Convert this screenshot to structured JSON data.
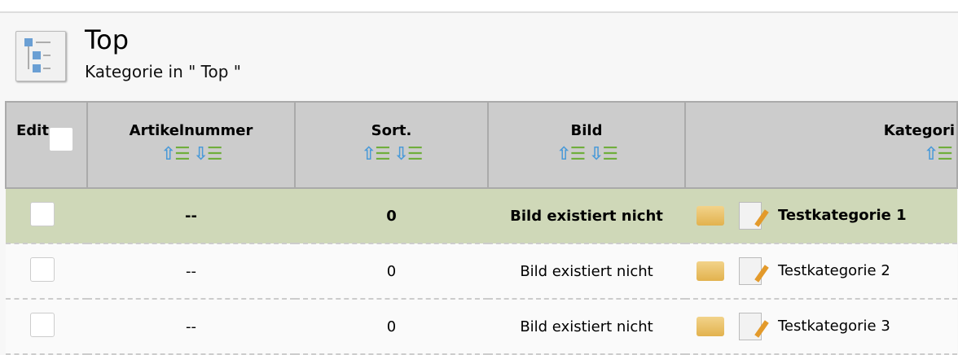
{
  "header": {
    "title": "Top",
    "subtitle": "Kategorie in \" Top \"",
    "icon": "category-tree-icon"
  },
  "table": {
    "columns": [
      "Edit",
      "Artikelnummer",
      "Sort.",
      "Bild",
      "Kategori"
    ],
    "rows": [
      {
        "artikelnummer": "--",
        "sort": "0",
        "bild": "Bild existiert nicht",
        "kategorie": "Testkategorie 1",
        "selected": true
      },
      {
        "artikelnummer": "--",
        "sort": "0",
        "bild": "Bild existiert nicht",
        "kategorie": "Testkategorie 2",
        "selected": false
      },
      {
        "artikelnummer": "--",
        "sort": "0",
        "bild": "Bild existiert nicht",
        "kategorie": "Testkategorie 3",
        "selected": false
      }
    ]
  },
  "colors": {
    "selected_row": "#cfd8b8",
    "header_bg": "#cccccc"
  }
}
